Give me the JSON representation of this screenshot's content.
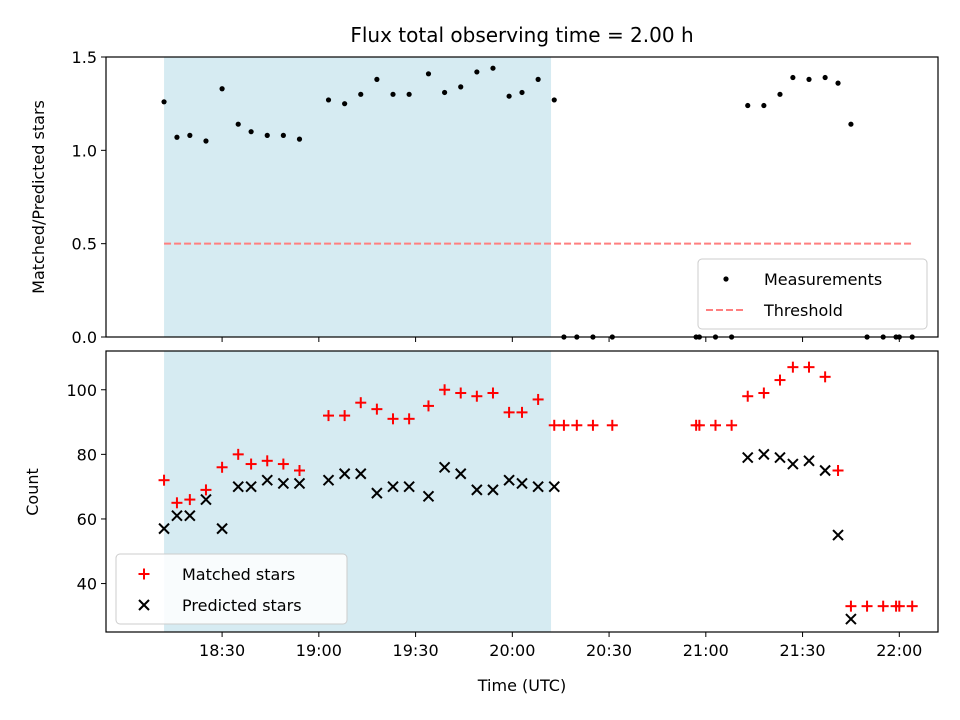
{
  "chart_data": [
    {
      "type": "scatter",
      "title": "Flux total observing time = 2.00 h",
      "xlabel": "",
      "ylabel": "Matched/Predicted stars",
      "ylim": [
        0,
        1.5
      ],
      "yticks": [
        "0.0",
        "0.5",
        "1.0",
        "1.5"
      ],
      "shaded_interval": [
        "18:12",
        "20:12"
      ],
      "legend": {
        "placement": "lower-right"
      },
      "series": [
        {
          "name": "Measurements",
          "marker": "dot",
          "color": "#000000",
          "x": [
            "18:12",
            "18:16",
            "18:20",
            "18:25",
            "18:30",
            "18:35",
            "18:39",
            "18:44",
            "18:49",
            "18:54",
            "19:03",
            "19:08",
            "19:13",
            "19:18",
            "19:23",
            "19:28",
            "19:34",
            "19:39",
            "19:44",
            "19:49",
            "19:54",
            "19:59",
            "20:03",
            "20:08",
            "20:13",
            "20:16",
            "20:20",
            "20:25",
            "20:31",
            "20:57",
            "20:58",
            "21:03",
            "21:08",
            "21:13",
            "21:18",
            "21:23",
            "21:27",
            "21:32",
            "21:37",
            "21:41",
            "21:45",
            "21:50",
            "21:55",
            "21:59",
            "22:00",
            "22:04"
          ],
          "y": [
            1.26,
            1.07,
            1.08,
            1.05,
            1.33,
            1.14,
            1.1,
            1.08,
            1.08,
            1.06,
            1.27,
            1.25,
            1.3,
            1.38,
            1.3,
            1.3,
            1.41,
            1.31,
            1.34,
            1.42,
            1.44,
            1.29,
            1.31,
            1.38,
            1.27,
            0,
            0,
            0,
            0,
            0,
            0,
            0,
            0,
            1.24,
            1.24,
            1.3,
            1.39,
            1.38,
            1.39,
            1.36,
            1.14,
            0,
            0,
            0,
            0,
            0
          ]
        },
        {
          "name": "Threshold",
          "style": "dashed",
          "color": "#ff7f7f",
          "x": [
            "18:12",
            "22:04"
          ],
          "y": [
            0.5,
            0.5
          ]
        }
      ]
    },
    {
      "type": "scatter",
      "title": "",
      "xlabel": "Time (UTC)",
      "ylabel": "Count",
      "ylim": [
        25,
        112
      ],
      "yticks": [
        "40",
        "60",
        "80",
        "100"
      ],
      "xticks": [
        "18:30",
        "19:00",
        "19:30",
        "20:00",
        "20:30",
        "21:00",
        "21:30",
        "22:00"
      ],
      "shaded_interval": [
        "18:12",
        "20:12"
      ],
      "legend": {
        "placement": "lower-left"
      },
      "series": [
        {
          "name": "Matched stars",
          "marker": "plus",
          "color": "#ff0000",
          "x": [
            "18:12",
            "18:16",
            "18:20",
            "18:25",
            "18:30",
            "18:35",
            "18:39",
            "18:44",
            "18:49",
            "18:54",
            "19:03",
            "19:08",
            "19:13",
            "19:18",
            "19:23",
            "19:28",
            "19:34",
            "19:39",
            "19:44",
            "19:49",
            "19:54",
            "19:59",
            "20:03",
            "20:08",
            "20:13",
            "20:16",
            "20:20",
            "20:25",
            "20:31",
            "20:57",
            "20:58",
            "21:03",
            "21:08",
            "21:13",
            "21:18",
            "21:23",
            "21:27",
            "21:32",
            "21:37",
            "21:41",
            "21:45",
            "21:50",
            "21:55",
            "21:59",
            "22:00",
            "22:04"
          ],
          "y": [
            72,
            65,
            66,
            69,
            76,
            80,
            77,
            78,
            77,
            75,
            92,
            92,
            96,
            94,
            91,
            91,
            95,
            100,
            99,
            98,
            99,
            93,
            93,
            97,
            89,
            89,
            89,
            89,
            89,
            89,
            89,
            89,
            89,
            98,
            99,
            103,
            107,
            107,
            104,
            75,
            33,
            33,
            33,
            33,
            33,
            33
          ]
        },
        {
          "name": "Predicted stars",
          "marker": "x",
          "color": "#000000",
          "x": [
            "18:12",
            "18:16",
            "18:20",
            "18:25",
            "18:30",
            "18:35",
            "18:39",
            "18:44",
            "18:49",
            "18:54",
            "19:03",
            "19:08",
            "19:13",
            "19:18",
            "19:23",
            "19:28",
            "19:34",
            "19:39",
            "19:44",
            "19:49",
            "19:54",
            "19:59",
            "20:03",
            "20:08",
            "20:13",
            "21:13",
            "21:18",
            "21:23",
            "21:27",
            "21:32",
            "21:37",
            "21:41",
            "21:45"
          ],
          "y": [
            57,
            61,
            61,
            66,
            57,
            70,
            70,
            72,
            71,
            71,
            72,
            74,
            74,
            68,
            70,
            70,
            67,
            76,
            74,
            69,
            69,
            72,
            71,
            70,
            70,
            79,
            80,
            79,
            77,
            78,
            75,
            55,
            29
          ]
        }
      ]
    }
  ]
}
